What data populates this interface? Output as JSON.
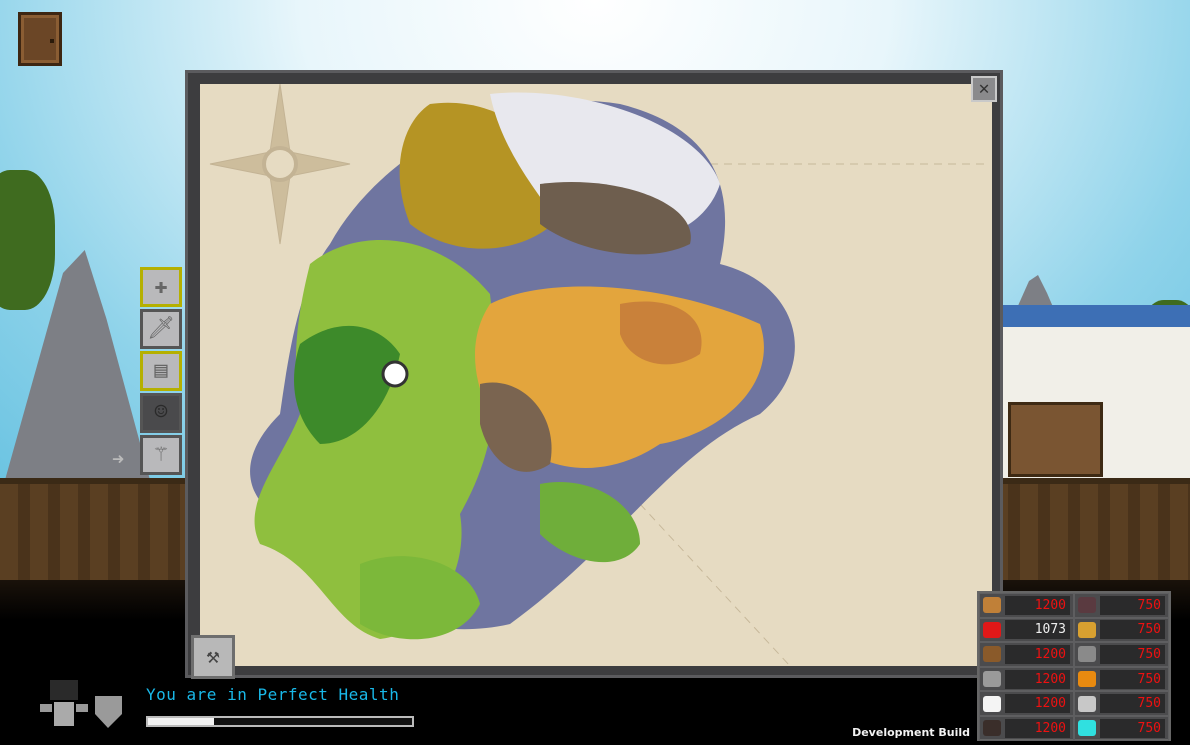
{
  "hud": {
    "health_text": "You are in Perfect Health",
    "health_bar_fraction": 0.25,
    "development_label": "Development Build"
  },
  "map": {
    "close_icon": "close-x",
    "tool_icon": "hammer"
  },
  "toolbar": [
    {
      "icon": "plus",
      "selected": true
    },
    {
      "icon": "sword",
      "selected": false
    },
    {
      "icon": "book",
      "selected": true
    },
    {
      "icon": "person",
      "selected": false
    },
    {
      "icon": "staff",
      "selected": false
    }
  ],
  "resources": [
    {
      "icon": "wood-log",
      "value": "1200",
      "color": "#c08038"
    },
    {
      "icon": "coal-ore",
      "value": "750",
      "color": "#5a3a40"
    },
    {
      "icon": "apple",
      "value": "1073",
      "color": "#e01818"
    },
    {
      "icon": "gold-ingot",
      "value": "750",
      "color": "#d8a030"
    },
    {
      "icon": "leather-hide",
      "value": "1200",
      "color": "#8a5a2a"
    },
    {
      "icon": "iron-ingot",
      "value": "750",
      "color": "#8a8a8a"
    },
    {
      "icon": "stone",
      "value": "1200",
      "color": "#9a9a9a"
    },
    {
      "icon": "copper-ingot",
      "value": "750",
      "color": "#e88a10"
    },
    {
      "icon": "cloth",
      "value": "1200",
      "color": "#f4f4f4"
    },
    {
      "icon": "silver-ingot",
      "value": "750",
      "color": "#c8c8c8"
    },
    {
      "icon": "coal",
      "value": "1200",
      "color": "#3a2e2a"
    },
    {
      "icon": "diamond-ingot",
      "value": "750",
      "color": "#30e0e0"
    }
  ]
}
